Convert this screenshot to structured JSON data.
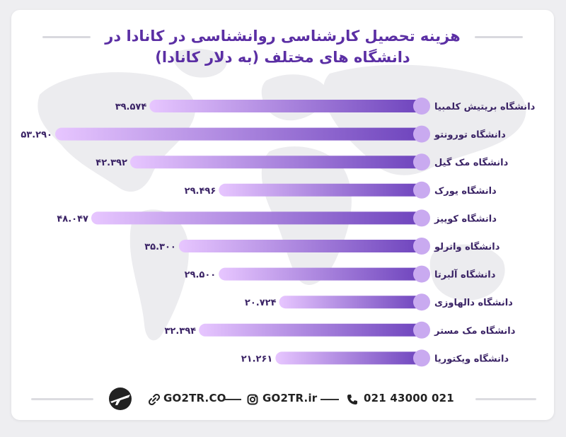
{
  "title_line1": "هزینه تحصیل کارشناسی روانشناسی در کانادا در",
  "title_line2": "دانشگاه های مختلف (به دلار کانادا)",
  "chart_data": {
    "type": "bar",
    "orientation": "horizontal",
    "title": "هزینه تحصیل کارشناسی روانشناسی در کانادا در دانشگاه های مختلف (به دلار کانادا)",
    "categories": [
      "دانشگاه بریتیش کلمبیا",
      "دانشگاه تورونتو",
      "دانشگاه مک گیل",
      "دانشگاه یورک",
      "دانشگاه کوییز",
      "دانشگاه واترلو",
      "دانشگاه آلبرتا",
      "دانشگاه دالهاوزی",
      "دانشگاه مک مستر",
      "دانشگاه ویکتوریا"
    ],
    "values": [
      39574,
      53290,
      42392,
      29496,
      48047,
      35300,
      29500,
      20724,
      32394,
      21261
    ],
    "value_labels": [
      "۳۹.۵۷۴",
      "۵۳.۲۹۰",
      "۴۲.۳۹۲",
      "۲۹.۴۹۶",
      "۴۸.۰۴۷",
      "۳۵.۳۰۰",
      "۲۹.۵۰۰",
      "۲۰.۷۲۴",
      "۳۲.۳۹۴",
      "۲۱.۲۶۱"
    ],
    "xlim": [
      0,
      53290
    ],
    "grid": false,
    "legend": "none"
  },
  "colors": {
    "bar_dark": "#6e44bd",
    "bar_light": "#e7c6ff",
    "knob": "#c9aaf0",
    "label": "#3b2466",
    "title": "#5b2fa4"
  },
  "footer": {
    "website": "GO2TR.CO",
    "instagram": "GO2TR.ir",
    "phone": "021 43000 021",
    "icons": [
      "airplane-logo-icon",
      "link-icon",
      "instagram-icon",
      "phone-icon"
    ]
  }
}
